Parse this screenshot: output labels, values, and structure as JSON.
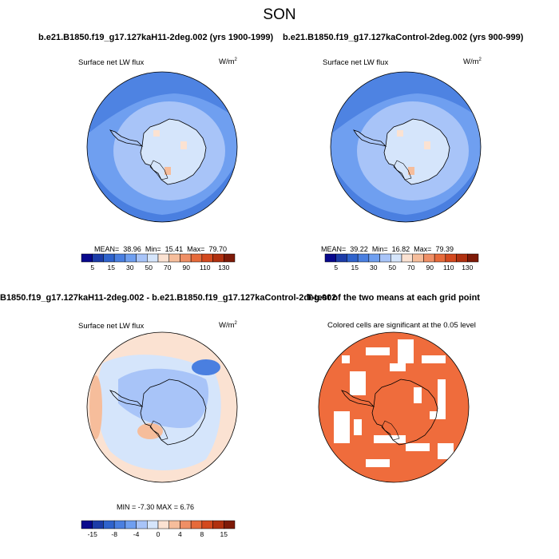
{
  "figure": {
    "season_title": "SON",
    "panels": [
      {
        "title": "b.e21.B1850.f19_g17.127kaH11-2deg.002 (yrs 1900-1999)",
        "variable": "Surface net LW flux",
        "units_base": "W/m",
        "units_exp": "2",
        "stats": {
          "mean_label": "MEAN=",
          "mean": "38.96",
          "min_label": "Min=",
          "min": "15.41",
          "max_label": "Max=",
          "max": "79.70"
        }
      },
      {
        "title": "b.e21.B1850.f19_g17.127kaControl-2deg.002 (yrs 900-999)",
        "variable": "Surface net LW flux",
        "units_base": "W/m",
        "units_exp": "2",
        "stats": {
          "mean_label": "MEAN=",
          "mean": "39.22",
          "min_label": "Min=",
          "min": "16.82",
          "max_label": "Max=",
          "max": "79.39"
        }
      },
      {
        "title": "B1850.f19_g17.127kaH11-2deg.002 - b.e21.B1850.f19_g17.127kaControl-2deg.002",
        "variable": "Surface net LW flux",
        "units_base": "W/m",
        "units_exp": "2",
        "stats_text": "MIN = -7.30 MAX = 6.76"
      },
      {
        "title": "T-test of the two means at each grid point",
        "subtitle": "Colored cells are significant at the 0.05 level"
      }
    ],
    "colorbar_abs": {
      "labels": [
        "5",
        "15",
        "30",
        "50",
        "70",
        "90",
        "110",
        "130"
      ],
      "colors": [
        "#08088c",
        "#1c3ca8",
        "#2f63cc",
        "#4a7fe0",
        "#6f9ff0",
        "#a8c4f8",
        "#d5e5fb",
        "#fbe2d2",
        "#f6bd9b",
        "#ef8f66",
        "#e66a3a",
        "#d3491e",
        "#b0300f",
        "#7e1a08"
      ]
    },
    "colorbar_diff": {
      "labels": [
        "-15",
        "-8",
        "-4",
        "0",
        "4",
        "8",
        "15"
      ],
      "colors": [
        "#08088c",
        "#1c3ca8",
        "#2f63cc",
        "#4a7fe0",
        "#6f9ff0",
        "#a8c4f8",
        "#d5e5fb",
        "#fbe2d2",
        "#f6bd9b",
        "#ef8f66",
        "#e66a3a",
        "#d3491e",
        "#b0300f",
        "#7e1a08"
      ]
    },
    "map_colors": {
      "ocean_deep": "#4a7fe0",
      "ocean_mid": "#6f9ff0",
      "ocean_light": "#a8c4f8",
      "ice": "#d5e5fb",
      "warm": "#fbe2d2",
      "warm_mid": "#f6bd9b",
      "signif": "#ef6c3c",
      "coast": "#000000"
    }
  }
}
